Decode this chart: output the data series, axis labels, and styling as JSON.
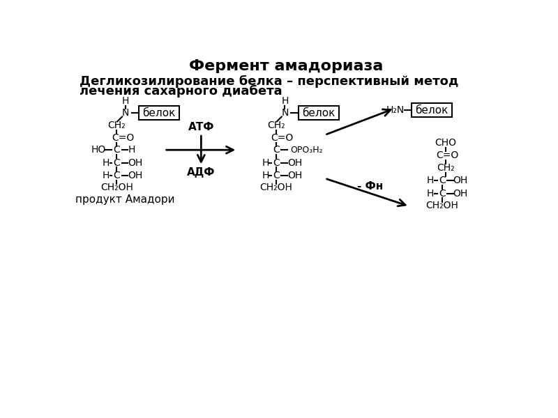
{
  "title": "Фермент амадориаза",
  "subtitle1": "Дегликозилирование белка – перспективный метод",
  "subtitle2": "лечения сахарного диабета",
  "label_amadori": "продукт Амадори",
  "label_atf": "АТФ",
  "label_adf": "АДФ",
  "label_belok": "белок",
  "label_h2n_belok": "H₂N",
  "label_fn": "- Фн",
  "bg_color": "#ffffff"
}
